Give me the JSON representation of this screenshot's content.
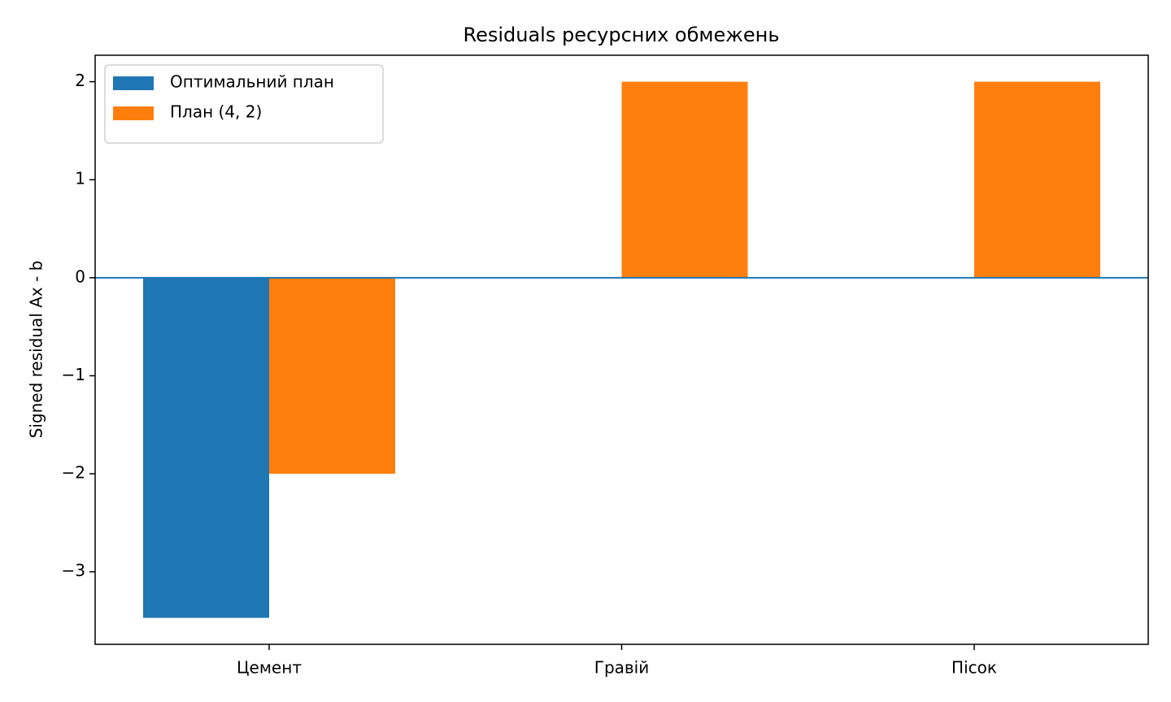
{
  "chart_data": {
    "type": "bar",
    "title": "Residuals ресурсних обмежень",
    "ylabel": "Signed residual Ax - b",
    "categories": [
      "Цемент",
      "Гравій",
      "Пісок"
    ],
    "series": [
      {
        "name": "Оптимальний план",
        "color": "#1f77b4",
        "values": [
          -3.47,
          0,
          0
        ]
      },
      {
        "name": "План (4, 2)",
        "color": "#ff7f0e",
        "values": [
          -2,
          2,
          2
        ]
      }
    ],
    "ylim": [
      -3.74,
      2.27
    ],
    "yticks": [
      {
        "value": -3,
        "label": "−3"
      },
      {
        "value": -2,
        "label": "−2"
      },
      {
        "value": -1,
        "label": "−1"
      },
      0,
      1,
      2
    ],
    "hline": 0,
    "hline_color": "#1f77b4",
    "legend": "upper-left",
    "grid": false
  }
}
